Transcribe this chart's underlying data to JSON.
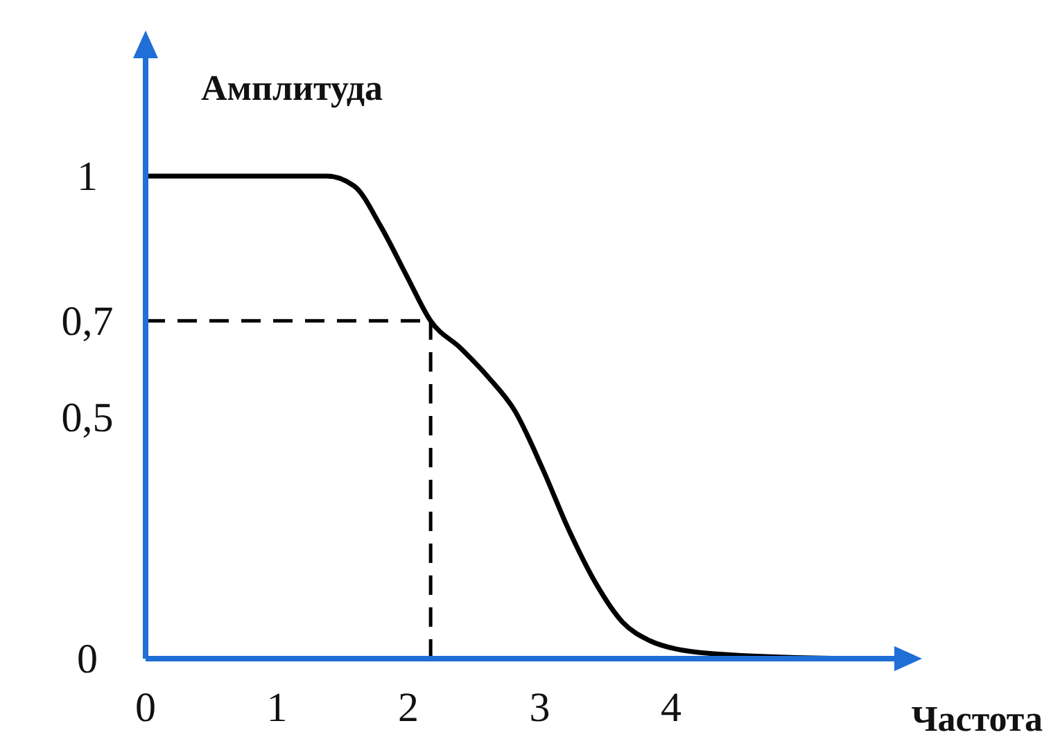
{
  "chart_data": {
    "type": "line",
    "xlabel": "Частота",
    "ylabel": "Амплитуда",
    "x": [
      0,
      0.5,
      1,
      1.38,
      1.59,
      1.79,
      1.99,
      2.17,
      2.4,
      2.61,
      2.81,
      3.02,
      3.22,
      3.43,
      3.63,
      3.84,
      4.04,
      4.45,
      5.37
    ],
    "series": [
      {
        "color": "#000000",
        "values": [
          1,
          1,
          1,
          1,
          0.979,
          0.896,
          0.792,
          0.7,
          0.643,
          0.583,
          0.514,
          0.395,
          0.268,
          0.155,
          0.076,
          0.037,
          0.02,
          0.008,
          0
        ]
      }
    ],
    "xlim": [
      0,
      5.7
    ],
    "ylim": [
      0,
      1.25
    ],
    "xticks": [
      0,
      1,
      2,
      3,
      4
    ],
    "yticks": [
      {
        "value": 0,
        "label": "0"
      },
      {
        "value": 0.5,
        "label": "0,5"
      },
      {
        "value": 0.7,
        "label": "0,7"
      },
      {
        "value": 1,
        "label": "1"
      }
    ],
    "ref_lines": [
      {
        "axis": "y",
        "value": 0.7,
        "color": "#000000",
        "line_style": "dashed"
      },
      {
        "axis": "x",
        "value": 2.17,
        "color": "#000000",
        "line_style": "dashed"
      }
    ],
    "grid": false,
    "marker": "none",
    "line_style": "solid"
  }
}
